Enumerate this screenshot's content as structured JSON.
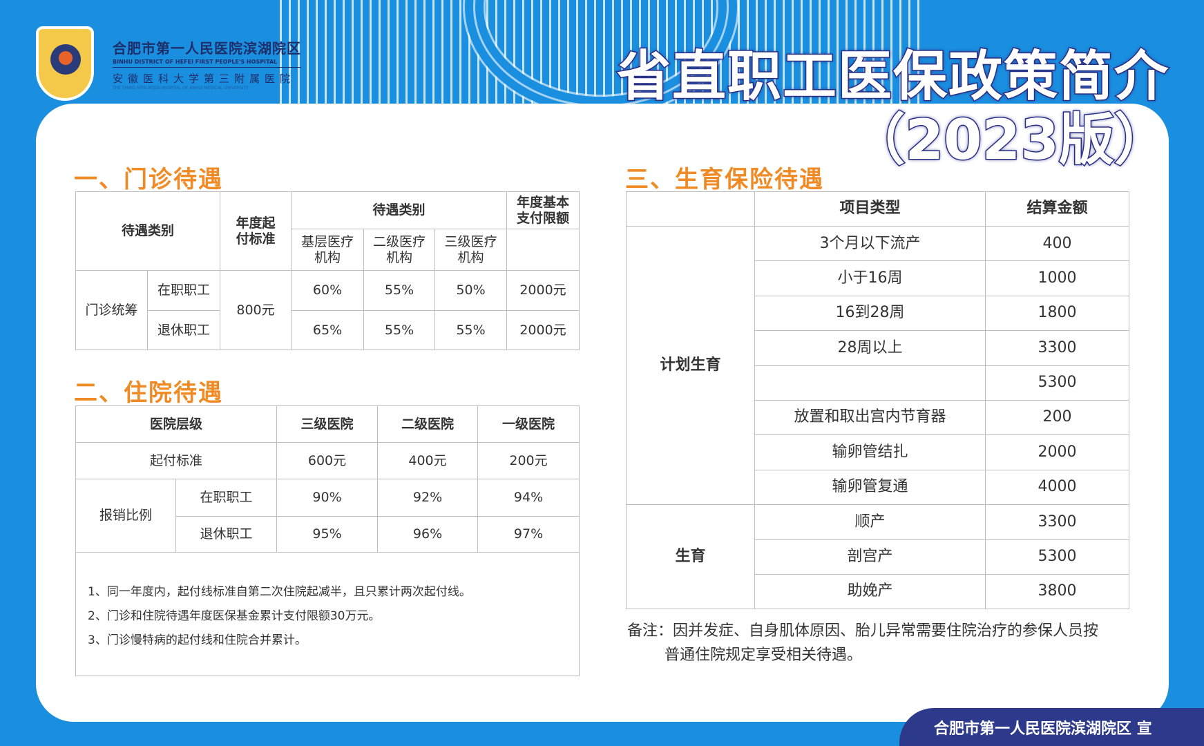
{
  "header": {
    "hospital_cn": "合肥市第一人民医院滨湖院区",
    "hospital_en": "BINHU DISTRICT OF HEFEI FIRST PEOPLE'S HOSPITAL",
    "affiliate_cn": "安徽医科大学第三附属医院",
    "affiliate_en": "THE THIRD AFFILIATED HOSPITAL OF ANHUI MEDICAL UNIVERSITY",
    "title": "省直职工医保政策简介",
    "subtitle": "（2023版）"
  },
  "outpatient": {
    "heading": "一、门诊待遇",
    "h_type": "待遇类别",
    "h_threshold": "年度起付标准",
    "h_group": "待遇类别",
    "h_limit": "年度基本支付限额",
    "h_basic": "基层医疗机构",
    "h_level2": "二级医疗机构",
    "h_level3": "三级医疗机构",
    "category": "门诊统筹",
    "threshold": "800元",
    "rows": [
      {
        "who": "在职职工",
        "basic": "60%",
        "l2": "55%",
        "l3": "50%",
        "limit": "2000元"
      },
      {
        "who": "退休职工",
        "basic": "65%",
        "l2": "55%",
        "l3": "55%",
        "limit": "2000元"
      }
    ]
  },
  "inpatient": {
    "heading": "二、住院待遇",
    "h_level": "医院层级",
    "h_l3": "三级医院",
    "h_l2": "二级医院",
    "h_l1": "一级医院",
    "threshold_label": "起付标准",
    "threshold": [
      "600元",
      "400元",
      "200元"
    ],
    "ratio_label": "报销比例",
    "rows": [
      {
        "who": "在职职工",
        "v": [
          "90%",
          "92%",
          "94%"
        ]
      },
      {
        "who": "退休职工",
        "v": [
          "95%",
          "96%",
          "97%"
        ]
      }
    ],
    "notes": [
      "1、同一年度内，起付线标准自第二次住院起减半，且只累计两次起付线。",
      "2、门诊和住院待遇年度医保基金累计支付限额30万元。",
      "3、门诊慢特病的起付线和住院合并累计。"
    ]
  },
  "maternity": {
    "heading": "三、生育保险待遇",
    "h_item": "项目类型",
    "h_amount": "结算金额",
    "group1": "计划生育",
    "group2": "生育",
    "rows": [
      {
        "item": "3个月以下流产",
        "amount": "400"
      },
      {
        "item": "小于16周",
        "amount": "1000"
      },
      {
        "item": "16到28周",
        "amount": "1800"
      },
      {
        "item": "28周以上",
        "amount": "3300"
      },
      {
        "item": "",
        "amount": "5300"
      },
      {
        "item": "放置和取出宫内节育器",
        "amount": "200"
      },
      {
        "item": "输卵管结扎",
        "amount": "2000"
      },
      {
        "item": "输卵管复通",
        "amount": "4000"
      },
      {
        "item": "顺产",
        "amount": "3300"
      },
      {
        "item": "剖宫产",
        "amount": "5300"
      },
      {
        "item": "助娩产",
        "amount": "3800"
      }
    ],
    "remark_1": "备注：因并发症、自身肌体原因、胎儿异常需要住院治疗的参保人员按",
    "remark_2": "普通住院规定享受相关待遇。"
  },
  "footer": "合肥市第一人民医院滨湖院区 宣",
  "colors": {
    "background": "#1a8fe0",
    "heading": "#f08a24",
    "title_stroke": "#2a2f85",
    "footer": "#2d3a8c"
  }
}
